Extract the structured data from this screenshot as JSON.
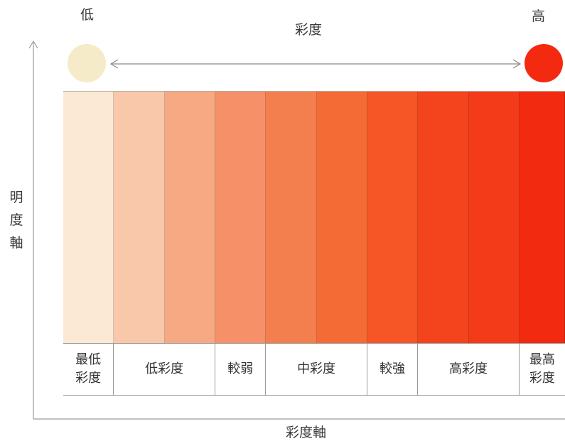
{
  "title": "彩度",
  "low_label": "低",
  "high_label": "高",
  "axis_vertical_label": "明度軸",
  "axis_horizontal_label": "彩度軸",
  "colors": {
    "low_circle": "#f6ebc9",
    "high_circle": "#f42a10",
    "axis_line": "#9a9a9a",
    "arrow": "#8a8a8a"
  },
  "swatches": [
    {
      "color": "#fbe9d6",
      "width_units": 1.0
    },
    {
      "color": "#f9c8aa",
      "width_units": 1.0
    },
    {
      "color": "#f6a982",
      "width_units": 1.0
    },
    {
      "color": "#f59068",
      "width_units": 1.0
    },
    {
      "color": "#f47f4e",
      "width_units": 1.0
    },
    {
      "color": "#f56b36",
      "width_units": 1.0
    },
    {
      "color": "#f65626",
      "width_units": 1.0
    },
    {
      "color": "#f4441e",
      "width_units": 1.0
    },
    {
      "color": "#f33a19",
      "width_units": 1.0
    },
    {
      "color": "#f22a10",
      "width_units": 0.9
    }
  ],
  "categories": [
    {
      "label": "最低\n彩度",
      "width_units": 1.0
    },
    {
      "label": "低彩度",
      "width_units": 2.0
    },
    {
      "label": "較弱",
      "width_units": 1.0
    },
    {
      "label": "中彩度",
      "width_units": 2.0
    },
    {
      "label": "較強",
      "width_units": 1.0
    },
    {
      "label": "高彩度",
      "width_units": 2.0
    },
    {
      "label": "最高\n彩度",
      "width_units": 0.9
    }
  ]
}
